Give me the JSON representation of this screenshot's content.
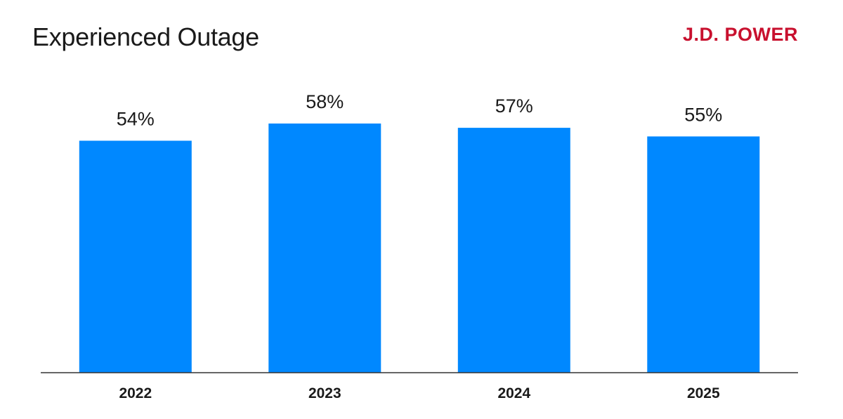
{
  "brand": {
    "name": "J.D. POWER",
    "color": "#c8102e"
  },
  "chart_data": {
    "type": "bar",
    "title": "Experienced Outage",
    "categories": [
      "2022",
      "2023",
      "2024",
      "2025"
    ],
    "values": [
      54,
      58,
      57,
      55
    ],
    "data_labels": [
      "54%",
      "58%",
      "57%",
      "55%"
    ],
    "ylim": [
      0,
      60
    ],
    "bar_color": "#0088ff",
    "xlabel": "",
    "ylabel": "",
    "grid": false
  }
}
